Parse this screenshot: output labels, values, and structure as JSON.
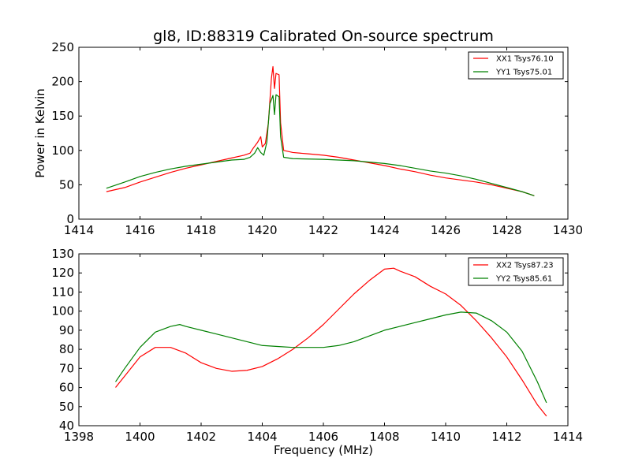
{
  "figure": {
    "title": "gl8, ID:88319 Calibrated On-source spectrum"
  },
  "chart_data": [
    {
      "type": "line",
      "title": "gl8, ID:88319 Calibrated On-source spectrum",
      "xlabel": "",
      "ylabel": "Power in Kelvin",
      "xlim": [
        1414,
        1430
      ],
      "ylim": [
        0,
        250
      ],
      "xticks": [
        1414,
        1416,
        1418,
        1420,
        1422,
        1424,
        1426,
        1428,
        1430
      ],
      "yticks": [
        0,
        50,
        100,
        150,
        200,
        250
      ],
      "grid": false,
      "legend_position": "top-right",
      "series": [
        {
          "name": "XX1 Tsys76.10",
          "color": "#ff0000",
          "points": [
            [
              1414.9,
              40
            ],
            [
              1415.5,
              46
            ],
            [
              1416,
              54
            ],
            [
              1416.5,
              61
            ],
            [
              1417,
              68
            ],
            [
              1417.5,
              74
            ],
            [
              1418,
              79
            ],
            [
              1418.5,
              84
            ],
            [
              1419,
              89
            ],
            [
              1419.4,
              93
            ],
            [
              1419.6,
              96
            ],
            [
              1419.7,
              103
            ],
            [
              1419.85,
              112
            ],
            [
              1419.95,
              120
            ],
            [
              1420.0,
              105
            ],
            [
              1420.1,
              110
            ],
            [
              1420.2,
              140
            ],
            [
              1420.3,
              205
            ],
            [
              1420.35,
              222
            ],
            [
              1420.4,
              190
            ],
            [
              1420.45,
              212
            ],
            [
              1420.55,
              210
            ],
            [
              1420.6,
              140
            ],
            [
              1420.7,
              100
            ],
            [
              1421,
              97
            ],
            [
              1421.5,
              95
            ],
            [
              1422,
              93
            ],
            [
              1422.5,
              90
            ],
            [
              1423,
              86
            ],
            [
              1423.5,
              82
            ],
            [
              1424,
              78
            ],
            [
              1424.5,
              73
            ],
            [
              1425,
              69
            ],
            [
              1425.5,
              64
            ],
            [
              1426,
              60
            ],
            [
              1426.5,
              57
            ],
            [
              1427,
              54
            ],
            [
              1427.5,
              50
            ],
            [
              1428,
              45
            ],
            [
              1428.5,
              40
            ],
            [
              1428.9,
              34
            ]
          ]
        },
        {
          "name": "YY1 Tsys75.01",
          "color": "#008000",
          "points": [
            [
              1414.9,
              45
            ],
            [
              1415.5,
              54
            ],
            [
              1416,
              62
            ],
            [
              1416.5,
              68
            ],
            [
              1417,
              73
            ],
            [
              1417.5,
              77
            ],
            [
              1418,
              80
            ],
            [
              1418.5,
              83
            ],
            [
              1419,
              86
            ],
            [
              1419.4,
              87
            ],
            [
              1419.6,
              90
            ],
            [
              1419.75,
              96
            ],
            [
              1419.85,
              104
            ],
            [
              1419.95,
              97
            ],
            [
              1420.05,
              93
            ],
            [
              1420.15,
              112
            ],
            [
              1420.25,
              168
            ],
            [
              1420.35,
              180
            ],
            [
              1420.4,
              152
            ],
            [
              1420.45,
              181
            ],
            [
              1420.55,
              178
            ],
            [
              1420.6,
              120
            ],
            [
              1420.7,
              90
            ],
            [
              1421,
              88
            ],
            [
              1422,
              87
            ],
            [
              1423,
              85
            ],
            [
              1424,
              81
            ],
            [
              1424.5,
              78
            ],
            [
              1425,
              74
            ],
            [
              1425.5,
              70
            ],
            [
              1426,
              67
            ],
            [
              1426.5,
              63
            ],
            [
              1427,
              58
            ],
            [
              1427.5,
              52
            ],
            [
              1428,
              46
            ],
            [
              1428.5,
              40
            ],
            [
              1428.9,
              34
            ]
          ]
        }
      ]
    },
    {
      "type": "line",
      "title": "",
      "xlabel": "Frequency (MHz)",
      "ylabel": "",
      "xlim": [
        1398,
        1414
      ],
      "ylim": [
        40,
        130
      ],
      "xticks": [
        1398,
        1400,
        1402,
        1404,
        1406,
        1408,
        1410,
        1412,
        1414
      ],
      "yticks": [
        40,
        50,
        60,
        70,
        80,
        90,
        100,
        110,
        120,
        130
      ],
      "grid": false,
      "legend_position": "top-right",
      "series": [
        {
          "name": "XX2 Tsys87.23",
          "color": "#ff0000",
          "points": [
            [
              1399.2,
              60
            ],
            [
              1399.5,
              66
            ],
            [
              1400,
              76
            ],
            [
              1400.5,
              81
            ],
            [
              1401,
              81
            ],
            [
              1401.5,
              78
            ],
            [
              1402,
              73
            ],
            [
              1402.5,
              70
            ],
            [
              1403,
              68.5
            ],
            [
              1403.5,
              69
            ],
            [
              1404,
              71
            ],
            [
              1404.5,
              75
            ],
            [
              1405,
              80
            ],
            [
              1405.5,
              86
            ],
            [
              1406,
              93
            ],
            [
              1406.5,
              101
            ],
            [
              1407,
              109
            ],
            [
              1407.5,
              116
            ],
            [
              1408,
              122
            ],
            [
              1408.3,
              122.5
            ],
            [
              1408.5,
              121
            ],
            [
              1409,
              118
            ],
            [
              1409.5,
              113
            ],
            [
              1410,
              109
            ],
            [
              1410.5,
              103
            ],
            [
              1411,
              95
            ],
            [
              1411.5,
              86
            ],
            [
              1412,
              76
            ],
            [
              1412.5,
              64
            ],
            [
              1413,
              51
            ],
            [
              1413.3,
              45
            ]
          ]
        },
        {
          "name": "YY2 Tsys85.61",
          "color": "#008000",
          "points": [
            [
              1399.2,
              63
            ],
            [
              1399.5,
              70
            ],
            [
              1400,
              81
            ],
            [
              1400.5,
              89
            ],
            [
              1401,
              92
            ],
            [
              1401.3,
              93
            ],
            [
              1401.5,
              92
            ],
            [
              1402,
              90
            ],
            [
              1402.5,
              88
            ],
            [
              1403,
              86
            ],
            [
              1403.5,
              84
            ],
            [
              1404,
              82
            ],
            [
              1404.5,
              81.5
            ],
            [
              1405,
              81
            ],
            [
              1405.5,
              81
            ],
            [
              1406,
              81
            ],
            [
              1406.5,
              82
            ],
            [
              1407,
              84
            ],
            [
              1407.5,
              87
            ],
            [
              1408,
              90
            ],
            [
              1408.5,
              92
            ],
            [
              1409,
              94
            ],
            [
              1409.5,
              96
            ],
            [
              1410,
              98
            ],
            [
              1410.5,
              99.5
            ],
            [
              1411,
              99
            ],
            [
              1411.5,
              95
            ],
            [
              1412,
              89
            ],
            [
              1412.5,
              79
            ],
            [
              1413,
              63
            ],
            [
              1413.3,
              52
            ]
          ]
        }
      ]
    }
  ]
}
